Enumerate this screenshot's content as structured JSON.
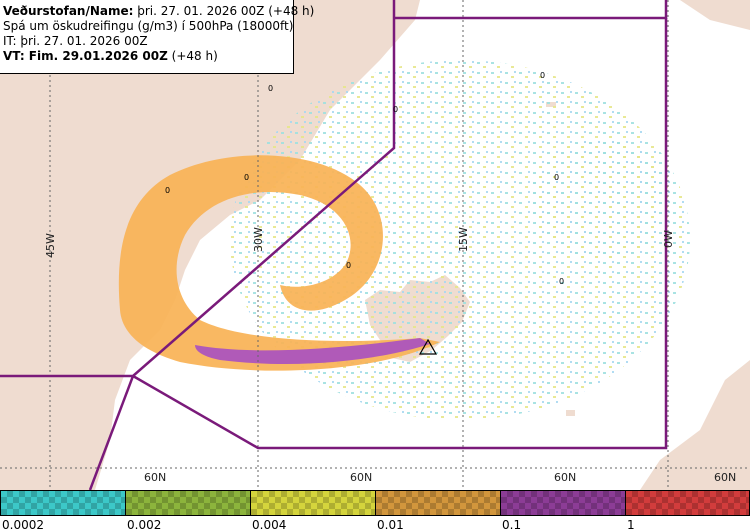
{
  "header": {
    "line1_bold": "Veðurstofan/Name:",
    "line1_rest": " þri. 27. 01. 2026 00Z (+48 h)",
    "line2": "Spá um öskudreifingu (g/m3) í 500hPa (18000ft)",
    "line3": "IT: þri. 27. 01. 2026 00Z",
    "line4_bold": "VT: Fim. 29.01.2026 00Z",
    "line4_rest": " (+48 h)"
  },
  "map": {
    "longitude_labels": [
      "45W",
      "30W",
      "15W",
      "0W"
    ],
    "latitude_labels": [
      "60N",
      "60N",
      "60N",
      "60N"
    ],
    "contour_labels": [
      "0",
      "0",
      "0",
      "0",
      "0",
      "0",
      "0",
      "0"
    ],
    "colors": {
      "land": "#efdcd0",
      "orange": "#f8b255",
      "purple": "#b05ab8",
      "sector": "#7a1a7a"
    }
  },
  "legend": {
    "ticks": [
      "0.0002",
      "0.002",
      "0.004",
      "0.01",
      "0.1",
      "1"
    ],
    "colors": [
      "#3cc8c8",
      "#8cb43c",
      "#d4d43c",
      "#d2963c",
      "#8c3c96",
      "#d23c3c"
    ]
  }
}
